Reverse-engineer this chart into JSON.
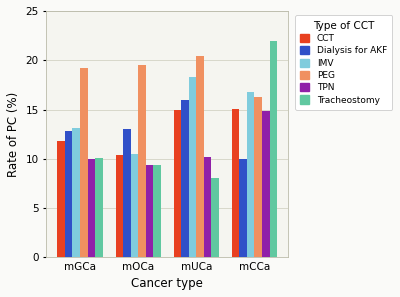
{
  "categories": [
    "mGCa",
    "mOCa",
    "mUCa",
    "mCCa"
  ],
  "series": {
    "CCT": [
      11.8,
      10.4,
      15.0,
      15.1
    ],
    "Dialysis for AKF": [
      12.8,
      13.0,
      16.0,
      10.0
    ],
    "IMV": [
      13.1,
      10.5,
      18.3,
      16.8
    ],
    "PEG": [
      19.2,
      19.5,
      20.4,
      16.3
    ],
    "TPN": [
      10.0,
      9.4,
      10.2,
      14.8
    ],
    "Tracheostomy": [
      10.1,
      9.4,
      8.1,
      22.0
    ]
  },
  "colors": {
    "CCT": "#E84020",
    "Dialysis for AKF": "#3050C8",
    "IMV": "#80CCDD",
    "PEG": "#F09060",
    "TPN": "#9020A8",
    "Tracheostomy": "#60C8A0"
  },
  "xlabel": "Cancer type",
  "ylabel": "Rate of PC (%)",
  "legend_title": "Type of CCT",
  "ylim": [
    0,
    25
  ],
  "yticks": [
    0,
    5,
    10,
    15,
    20,
    25
  ],
  "background_color": "#FAFAF8",
  "plot_bg": "#F5F5F0"
}
